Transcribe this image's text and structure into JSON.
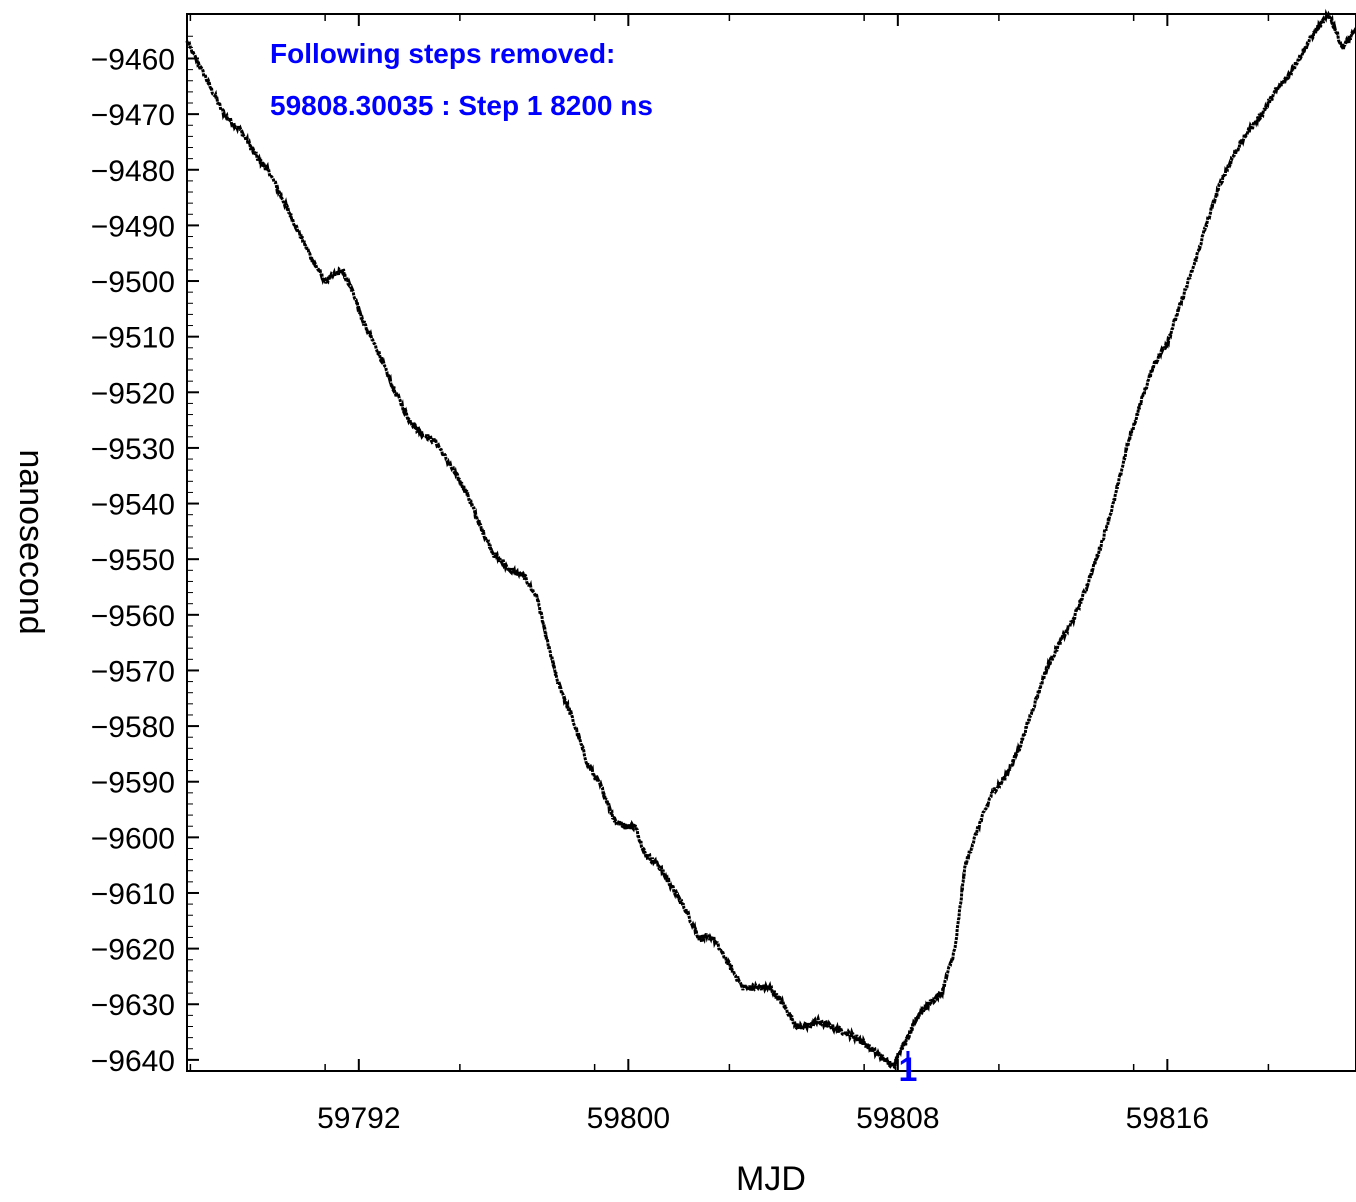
{
  "chart_data": {
    "type": "line",
    "title": "",
    "xlabel": "MJD",
    "ylabel": "nanosecond",
    "xlim": [
      59786.9,
      59821.6
    ],
    "ylim": [
      -9642,
      -9452
    ],
    "x_ticks": [
      59792,
      59800,
      59808,
      59816
    ],
    "y_ticks": [
      -9460,
      -9470,
      -9480,
      -9490,
      -9500,
      -9510,
      -9520,
      -9530,
      -9540,
      -9550,
      -9560,
      -9570,
      -9580,
      -9590,
      -9600,
      -9610,
      -9620,
      -9630,
      -9640
    ],
    "x_tick_labels": [
      "59792",
      "59800",
      "59808",
      "59816"
    ],
    "y_tick_labels": [
      "−9460",
      "−9470",
      "−9480",
      "−9490",
      "−9500",
      "−9510",
      "−9520",
      "−9530",
      "−9540",
      "−9550",
      "−9560",
      "−9570",
      "−9580",
      "−9590",
      "−9600",
      "−9610",
      "−9620",
      "−9630",
      "−9640"
    ],
    "grid": false,
    "series": [
      {
        "color": "#000000",
        "x": [
          59786.9,
          59787.5,
          59788.0,
          59788.5,
          59789.0,
          59789.3,
          59789.8,
          59790.2,
          59790.6,
          59791.0,
          59791.5,
          59791.9,
          59792.1,
          59792.6,
          59793.0,
          59793.5,
          59793.8,
          59794.3,
          59794.8,
          59795.2,
          59795.6,
          59796.0,
          59796.5,
          59796.9,
          59797.3,
          59797.6,
          59797.9,
          59798.3,
          59798.8,
          59799.2,
          59799.6,
          59799.9,
          59800.2,
          59800.5,
          59800.9,
          59801.3,
          59801.7,
          59802.1,
          59802.5,
          59803.0,
          59803.4,
          59803.8,
          59804.2,
          59804.6,
          59805.0,
          59805.3,
          59805.6,
          59806.0,
          59806.4,
          59806.8,
          59807.2,
          59807.6,
          59807.9,
          59808.0,
          59808.3,
          59808.6,
          59808.9,
          59809.3,
          59809.7,
          59810.0,
          59810.4,
          59810.8,
          59811.2,
          59811.6,
          59812.0,
          59812.4,
          59812.8,
          59813.2,
          59813.6,
          59814.0,
          59814.4,
          59814.8,
          59815.2,
          59815.6,
          59816.0,
          59816.4,
          59816.8,
          59817.2,
          59817.6,
          59818.0,
          59818.4,
          59818.8,
          59819.2,
          59819.6,
          59820.0,
          59820.4,
          59820.8,
          59821.2,
          59821.6
        ],
        "y": [
          -9457,
          -9464,
          -9470,
          -9473,
          -9478,
          -9480,
          -9486,
          -9491,
          -9496,
          -9500,
          -9498,
          -9503,
          -9507,
          -9513,
          -9519,
          -9525,
          -9527,
          -9529,
          -9534,
          -9538,
          -9544,
          -9549,
          -9552,
          -9553,
          -9557,
          -9565,
          -9572,
          -9578,
          -9587,
          -9591,
          -9597,
          -9598,
          -9598,
          -9603,
          -9605,
          -9609,
          -9613,
          -9618,
          -9618,
          -9623,
          -9627,
          -9627,
          -9627,
          -9630,
          -9634,
          -9634,
          -9633,
          -9634,
          -9635,
          -9636,
          -9638,
          -9640,
          -9641,
          -9639,
          -9636,
          -9632,
          -9630,
          -9628,
          -9620,
          -9605,
          -9598,
          -9592,
          -9589,
          -9584,
          -9577,
          -9570,
          -9565,
          -9561,
          -9555,
          -9548,
          -9540,
          -9530,
          -9522,
          -9515,
          -9511,
          -9504,
          -9497,
          -9489,
          -9482,
          -9477,
          -9473,
          -9470,
          -9466,
          -9463,
          -9459,
          -9455,
          -9452,
          -9458,
          -9455
        ]
      }
    ],
    "annotations": {
      "header": "Following steps removed:",
      "step_line": "59808.30035 : Step 1 8200 ns",
      "step_marker": "1",
      "step_marker_x": 59808.3,
      "step_color": "#0000ff"
    }
  }
}
